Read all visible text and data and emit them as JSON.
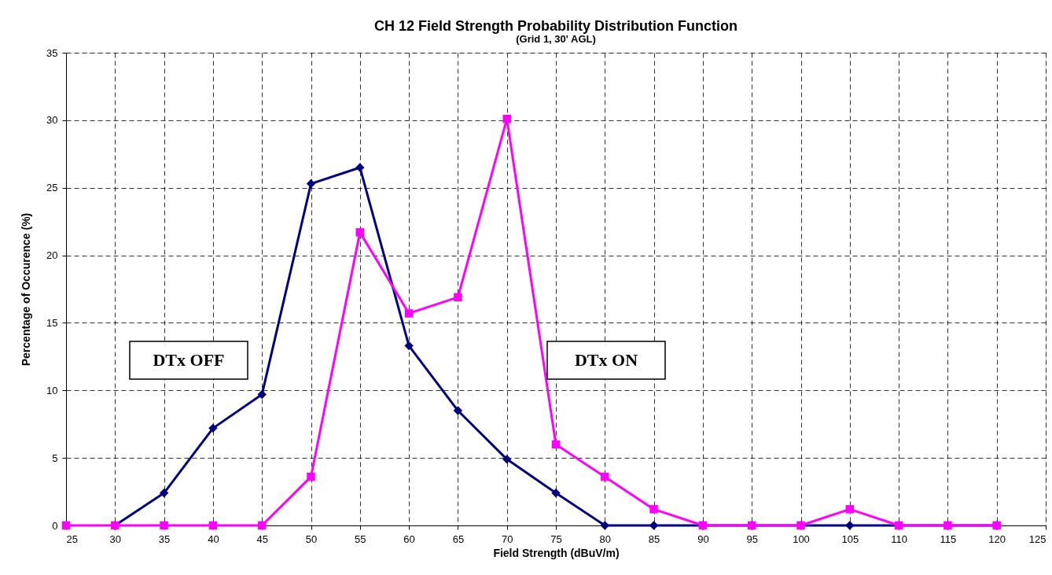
{
  "chart_data": {
    "type": "line",
    "title": "CH 12 Field Strength Probability Distribution Function",
    "subtitle": "(Grid 1, 30' AGL)",
    "xlabel": "Field Strength  (dBuV/m)",
    "ylabel": "Percentage of Occurence  (%)",
    "xlim": [
      25,
      125
    ],
    "xticks": [
      25,
      30,
      35,
      40,
      45,
      50,
      55,
      60,
      65,
      70,
      75,
      80,
      85,
      90,
      95,
      100,
      105,
      110,
      115,
      120,
      125
    ],
    "ylim": [
      0,
      35
    ],
    "yticks": [
      0,
      5,
      10,
      15,
      20,
      25,
      30,
      35
    ],
    "grid": true,
    "legend": false,
    "line_style": "solid",
    "series": [
      {
        "name": "DTx OFF",
        "color": "#000080",
        "marker": "diamond",
        "x": [
          30,
          35,
          40,
          45,
          50,
          55,
          60,
          65,
          70,
          75,
          80,
          85,
          90,
          95,
          100,
          105,
          110,
          115,
          120
        ],
        "values": [
          0,
          2.4,
          7.2,
          9.7,
          25.3,
          26.5,
          13.3,
          8.5,
          4.9,
          2.4,
          0,
          0,
          0,
          0,
          0,
          0,
          0,
          0,
          0
        ]
      },
      {
        "name": "DTx ON",
        "color": "#ff00ff",
        "marker": "square",
        "x": [
          25,
          30,
          35,
          40,
          45,
          50,
          55,
          60,
          65,
          70,
          75,
          80,
          85,
          90,
          95,
          100,
          105,
          110,
          115,
          120
        ],
        "values": [
          0,
          0,
          0,
          0,
          0,
          3.6,
          21.7,
          15.7,
          16.9,
          30.1,
          6.0,
          3.6,
          1.2,
          0,
          0,
          0,
          1.2,
          0,
          0,
          0
        ]
      }
    ]
  }
}
